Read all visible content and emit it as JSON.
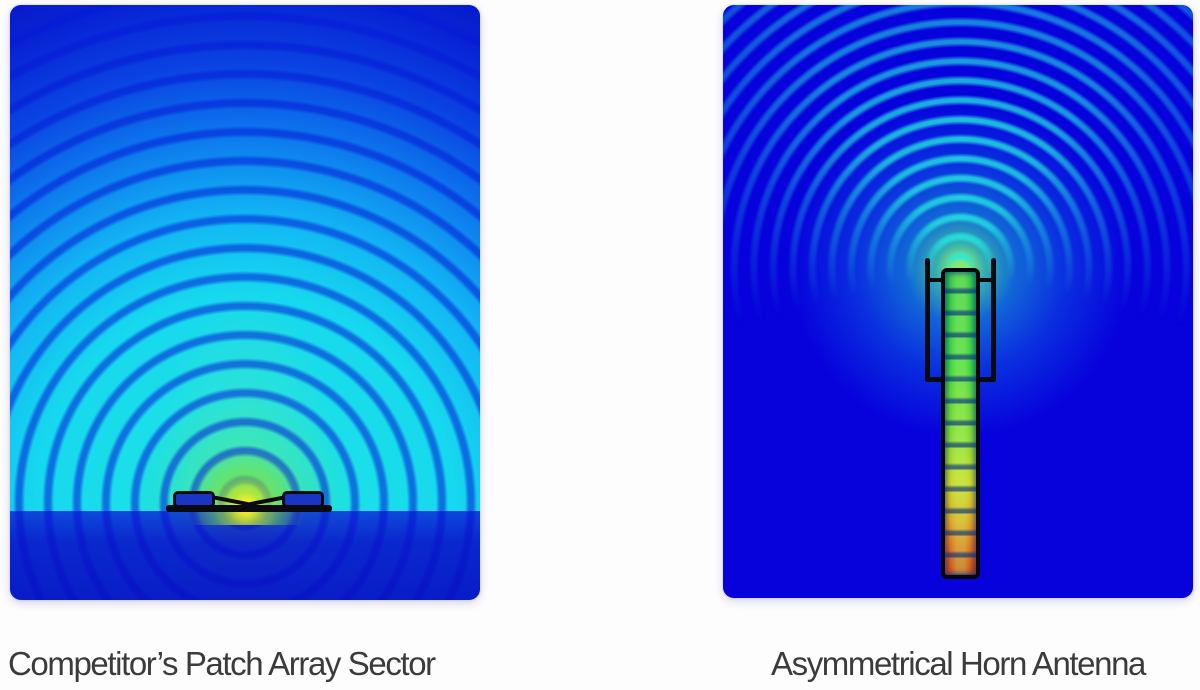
{
  "page": {
    "background_color": "#fdfdfe",
    "caption_color": "#3b3b3b"
  },
  "panels": [
    {
      "id": "patch-array",
      "caption": "Competitor’s Patch Array Sector",
      "palette": {
        "hotspot_green": "#7ce45c",
        "field_cyan": "#16d8ee",
        "ring_blue": "#0519d7",
        "deep_blue": "#081cc8",
        "feed_yellow": "#e8e431"
      }
    },
    {
      "id": "horn",
      "caption": "Asymmetrical Horn Antenna",
      "palette": {
        "background_blue": "#0701dc",
        "wave_cyan": "#23ebe1",
        "guide_green": "#36d13c",
        "guide_yellow": "#cfd41f",
        "feed_red": "#cc3a0e"
      }
    }
  ]
}
